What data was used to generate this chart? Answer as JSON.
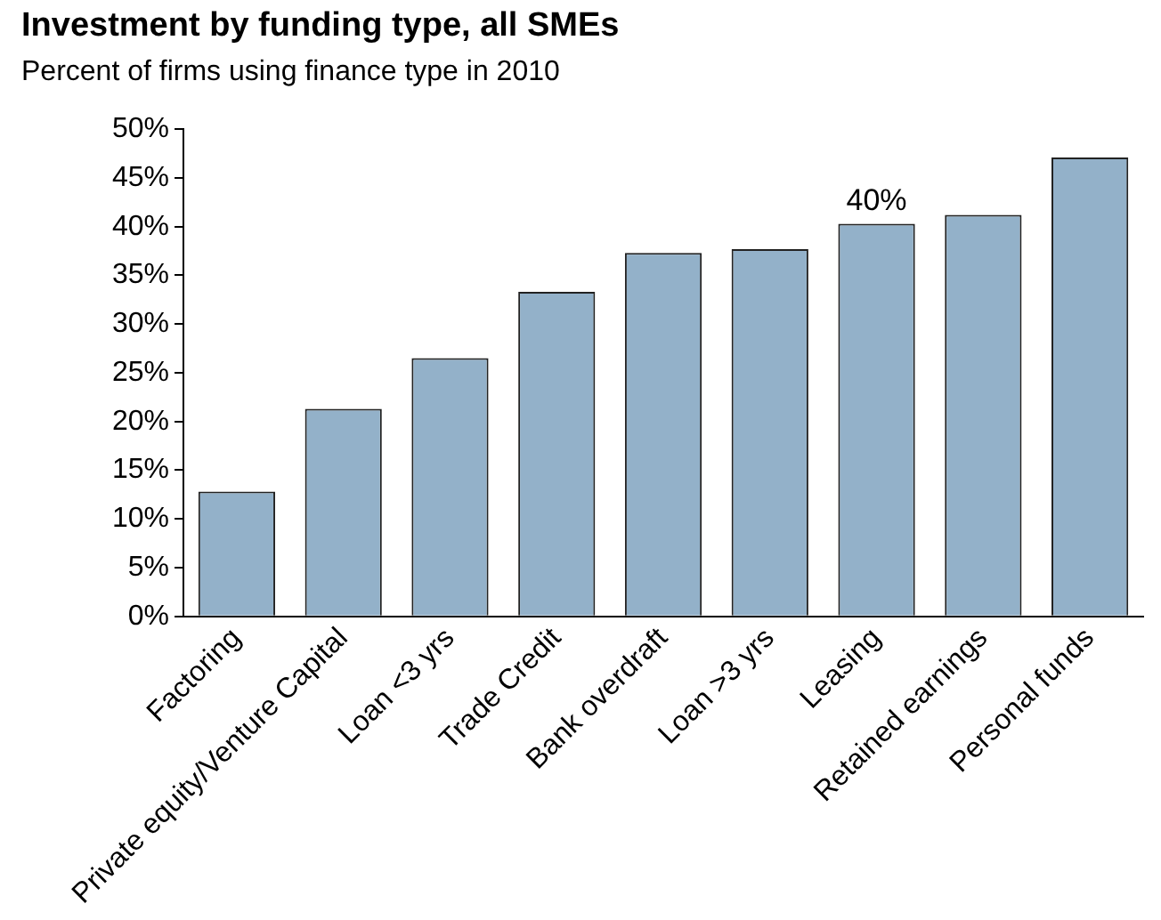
{
  "chart_data": {
    "type": "bar",
    "title": "Investment by funding type, all SMEs",
    "subtitle": "Percent of firms using finance type in 2010",
    "categories": [
      "Factoring",
      "Private equity/Venture Capital",
      "Loan <3 yrs",
      "Trade Credit",
      "Bank overdraft",
      "Loan >3 yrs",
      "Leasing",
      "Retained earnings",
      "Personal funds"
    ],
    "values": [
      12.8,
      21.3,
      26.5,
      33.3,
      37.3,
      37.7,
      40.3,
      41.2,
      47.1
    ],
    "value_labels": [
      null,
      null,
      null,
      null,
      null,
      null,
      "40%",
      null,
      null
    ],
    "color": "#93b1c9",
    "ylim": [
      0,
      50
    ],
    "yticks": [
      {
        "value": 0,
        "label": "0%"
      },
      {
        "value": 5,
        "label": "5%"
      },
      {
        "value": 10,
        "label": "10%"
      },
      {
        "value": 15,
        "label": "15%"
      },
      {
        "value": 20,
        "label": "20%"
      },
      {
        "value": 25,
        "label": "25%"
      },
      {
        "value": 30,
        "label": "30%"
      },
      {
        "value": 35,
        "label": "35%"
      },
      {
        "value": 40,
        "label": "40%"
      },
      {
        "value": 45,
        "label": "45%"
      },
      {
        "value": 50,
        "label": "50%"
      }
    ],
    "grid": false,
    "legend": false
  }
}
